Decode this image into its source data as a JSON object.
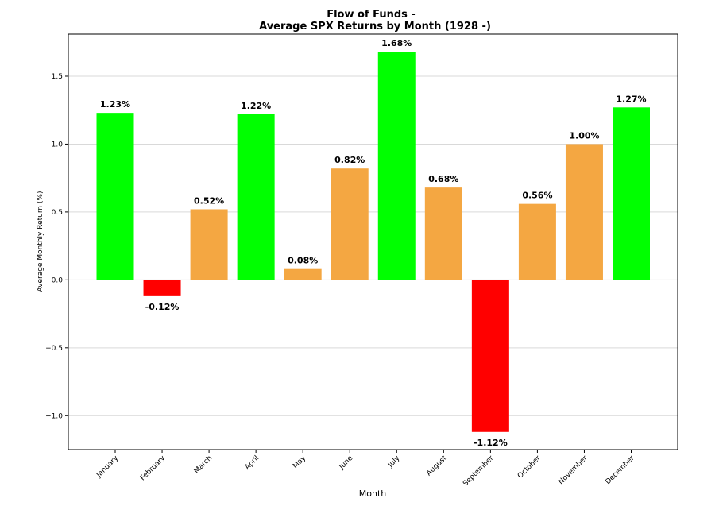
{
  "chart_data": {
    "type": "bar",
    "title_line1": "Flow of Funds -",
    "title_line2": "Average SPX Returns by Month (1928 -)",
    "xlabel": "Month",
    "ylabel": "Average Monthly Return (%)",
    "ylim": [
      -1.25,
      1.81
    ],
    "yticks": [
      1.5,
      1.0,
      0.5,
      0.0,
      -0.5,
      -1.0
    ],
    "ytick_labels": [
      "1.5",
      "1.0",
      "0.5",
      "0.0",
      "−0.5",
      "−1.0"
    ],
    "grid": true,
    "categories": [
      "January",
      "February",
      "March",
      "April",
      "May",
      "June",
      "July",
      "August",
      "September",
      "October",
      "November",
      "December"
    ],
    "values": [
      1.23,
      -0.12,
      0.52,
      1.22,
      0.08,
      0.82,
      1.68,
      0.68,
      -1.12,
      0.56,
      1.0,
      1.27
    ],
    "value_labels": [
      "1.23%",
      "-0.12%",
      "0.52%",
      "1.22%",
      "0.08%",
      "0.82%",
      "1.68%",
      "0.68%",
      "-1.12%",
      "0.56%",
      "1.00%",
      "1.27%"
    ],
    "colors": [
      "#00ff00",
      "#ff0000",
      "#f4a742",
      "#00ff00",
      "#f4a742",
      "#f4a742",
      "#00ff00",
      "#f4a742",
      "#ff0000",
      "#f4a742",
      "#f4a742",
      "#00ff00"
    ],
    "grid_color": "#d9d9d9"
  }
}
